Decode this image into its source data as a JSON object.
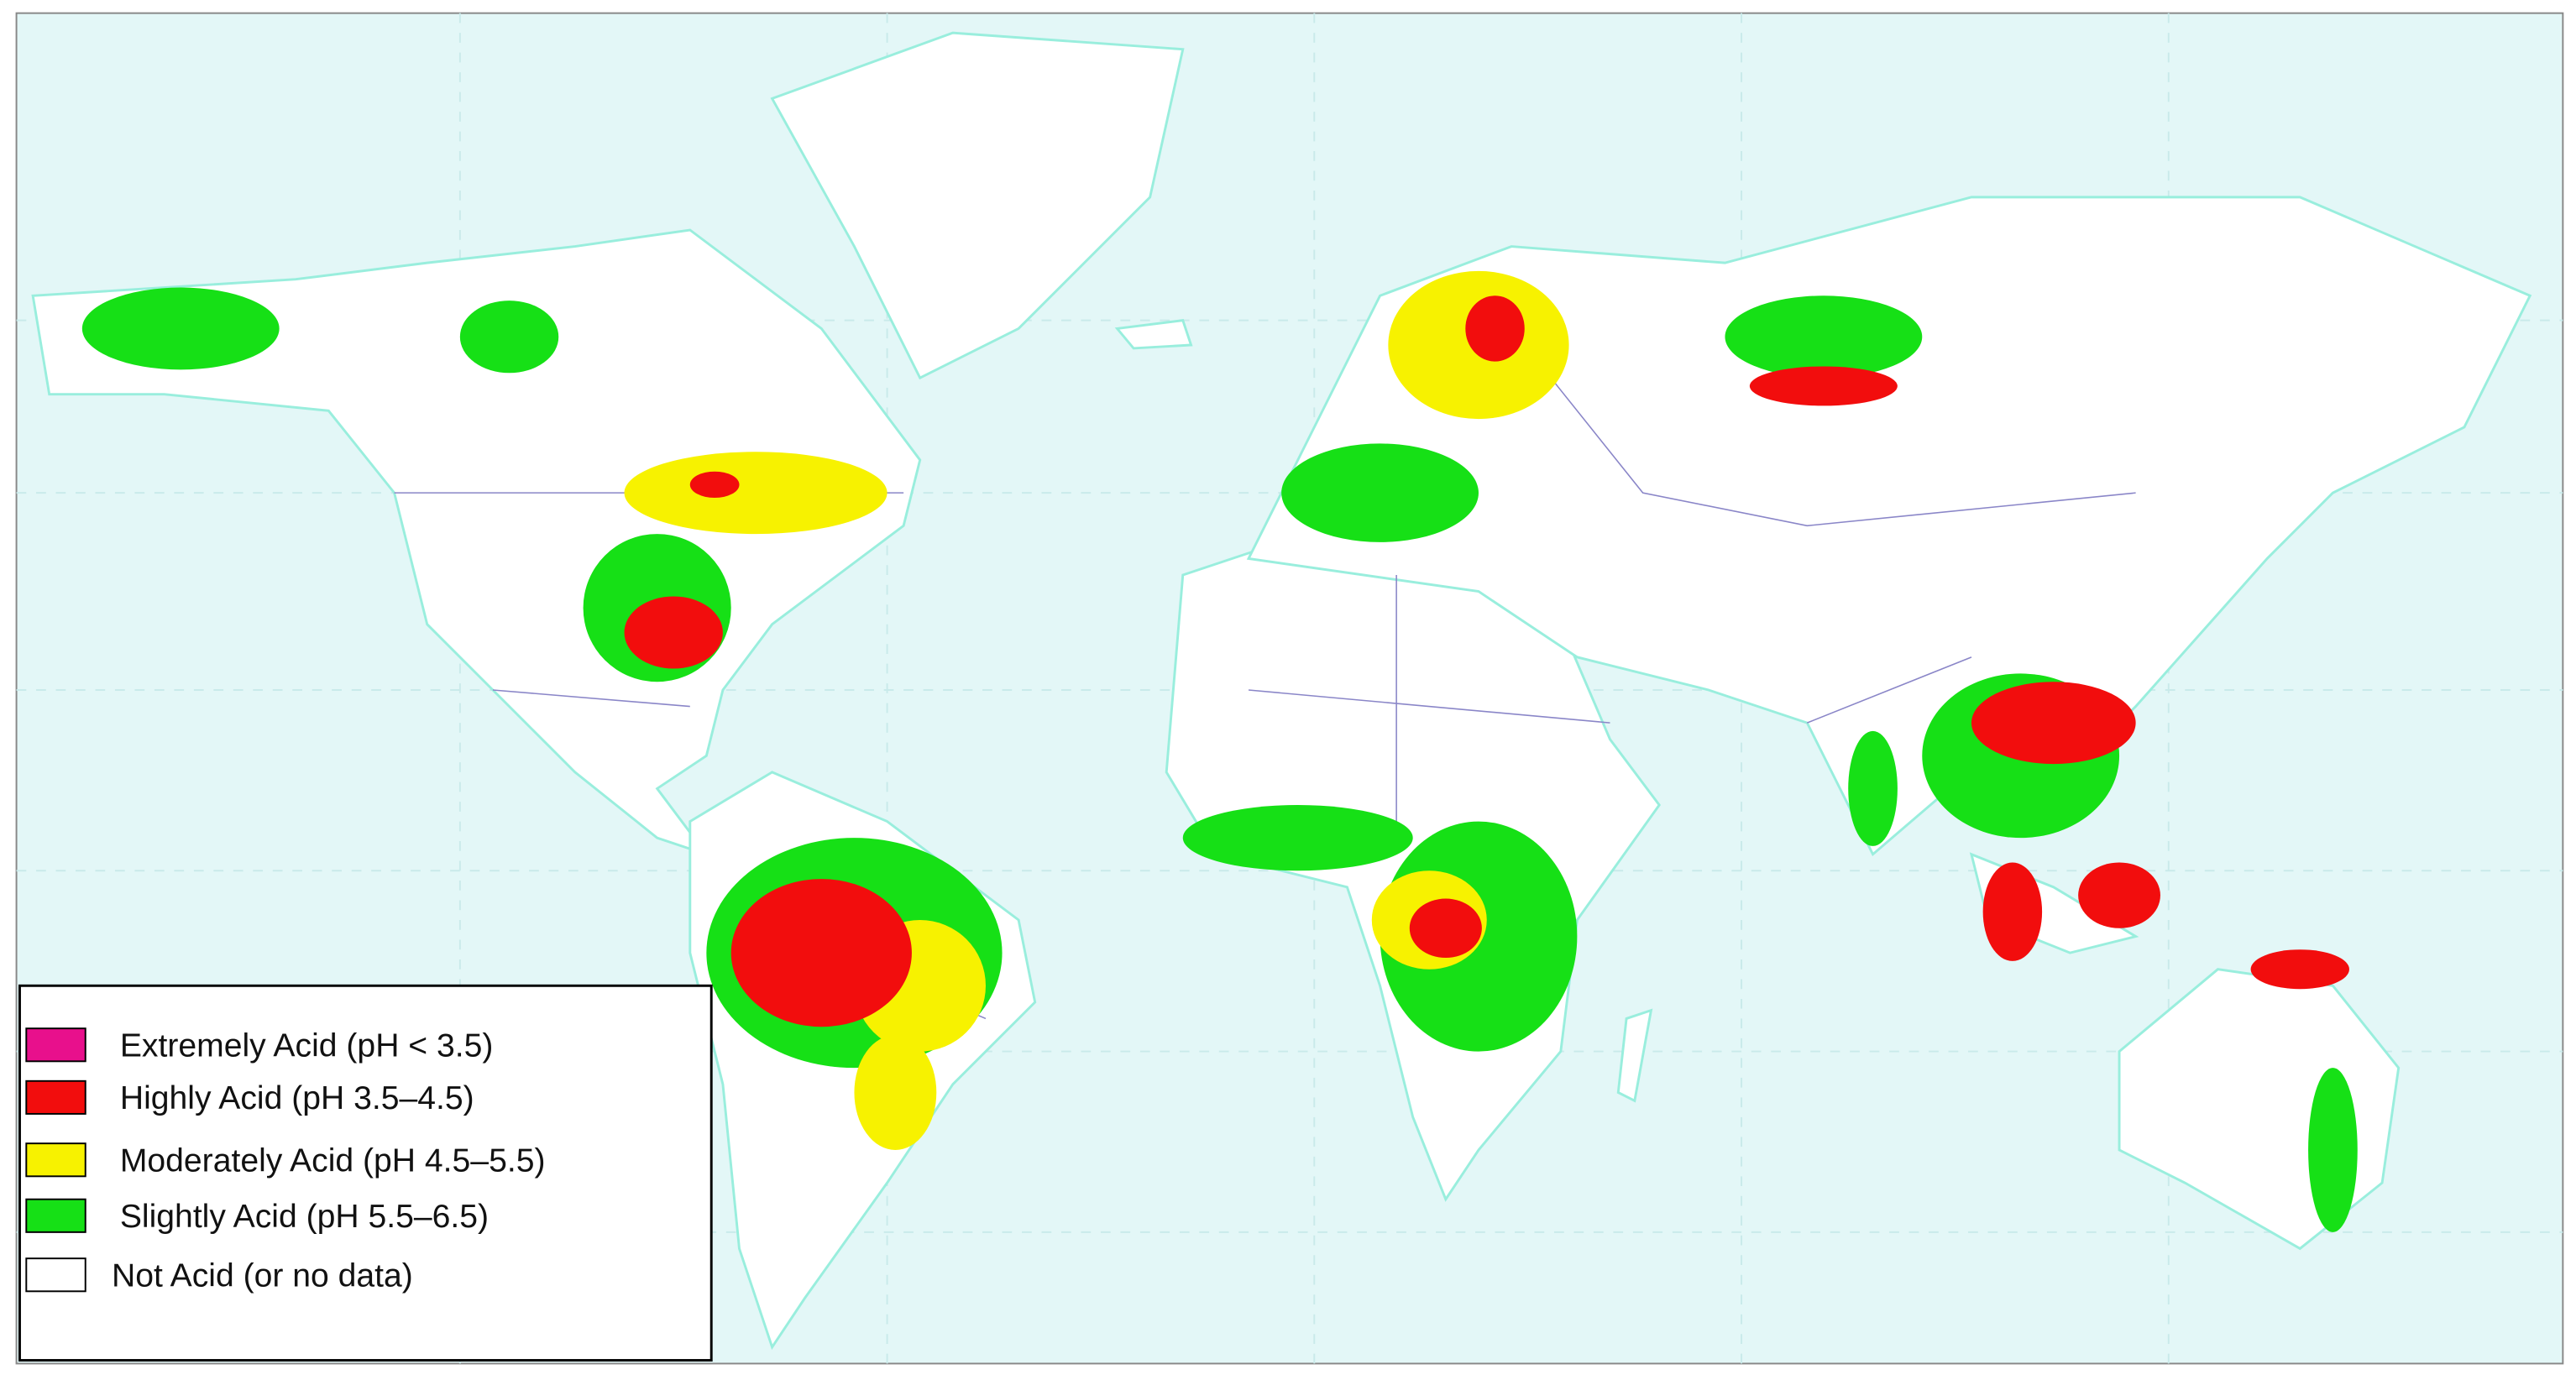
{
  "legend": {
    "items": [
      {
        "label": "Extremely Acid (pH < 3.5)",
        "color": "#e8108c"
      },
      {
        "label": "Highly Acid (pH 3.5–4.5)",
        "color": "#f20d0d"
      },
      {
        "label": "Moderately Acid (pH 4.5–5.5)",
        "color": "#f7f200"
      },
      {
        "label": "Slightly Acid (pH 5.5–6.5)",
        "color": "#16e016"
      },
      {
        "label": "Not Acid (or no data)",
        "color": "#ffffff"
      }
    ]
  }
}
